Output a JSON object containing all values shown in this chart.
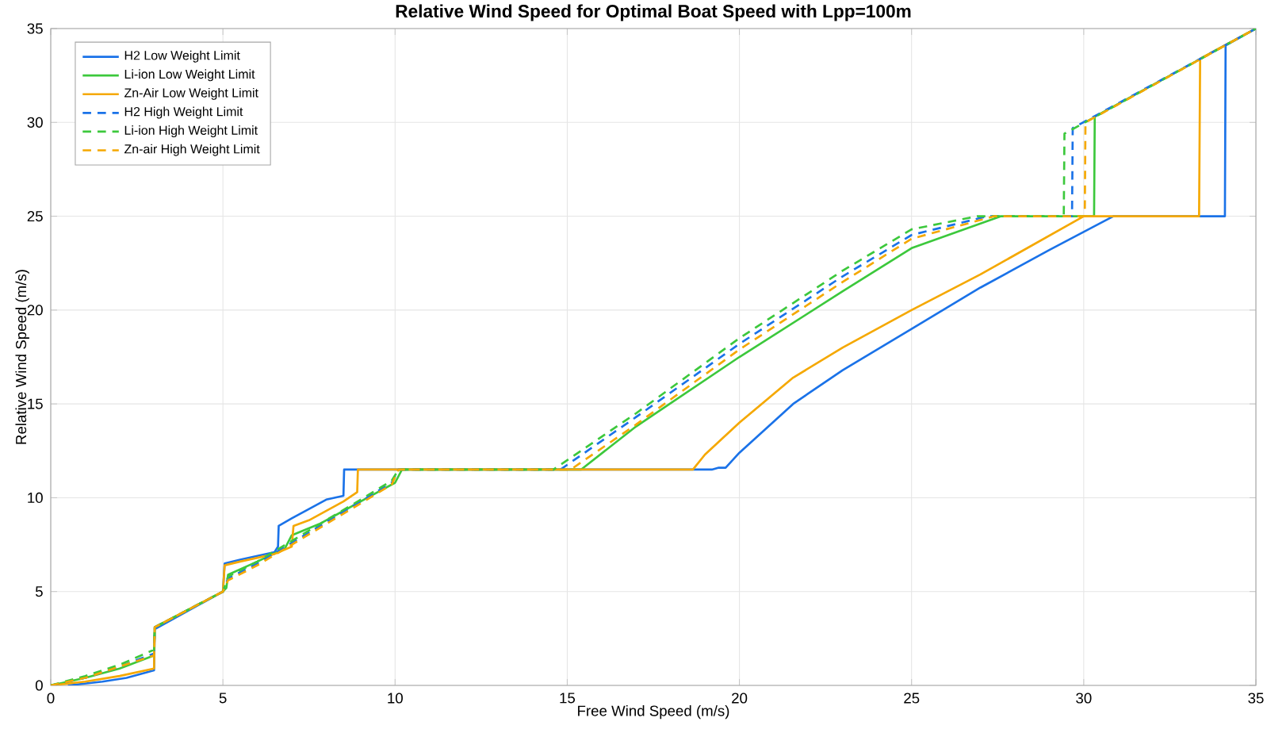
{
  "chart_data": {
    "type": "line",
    "title": "Relative Wind Speed for Optimal Boat Speed with Lpp=100m",
    "xlabel": "Free Wind Speed (m/s)",
    "ylabel": "Relative Wind Speed (m/s)",
    "xlim": [
      0,
      35
    ],
    "ylim": [
      0,
      35
    ],
    "xticks": [
      0,
      5,
      10,
      15,
      20,
      25,
      30,
      35
    ],
    "yticks": [
      0,
      5,
      10,
      15,
      20,
      25,
      30,
      35
    ],
    "grid": true,
    "legend": "top left",
    "marker": "none",
    "series": [
      {
        "name": "H2 Low Weight Limit",
        "color": "#1a72e8",
        "line_style": "solid",
        "x": [
          0.5,
          1.5,
          2.2,
          3,
          3.02,
          5,
          5.05,
          5.5,
          6,
          6.5,
          6.6,
          6.62,
          7,
          7.5,
          8,
          8.5,
          8.52,
          19.2,
          19.4,
          19.6,
          20,
          21.56,
          23,
          25,
          27,
          29,
          30.86,
          34.1,
          34.12,
          35
        ],
        "values": [
          0,
          0.2,
          0.4,
          0.8,
          3.0,
          5,
          6.5,
          6.7,
          6.9,
          7.1,
          7.4,
          8.5,
          8.9,
          9.4,
          9.9,
          10.1,
          11.5,
          11.5,
          11.6,
          11.6,
          12.4,
          15.0,
          16.8,
          19.0,
          21.2,
          23.2,
          25,
          25,
          34.1,
          35
        ]
      },
      {
        "name": "Li-ion Low Weight Limit",
        "color": "#3cc83c",
        "line_style": "solid",
        "x": [
          0,
          1,
          2,
          3,
          3.02,
          5,
          5.1,
          5.15,
          6,
          6.8,
          7.0,
          7.8,
          8.5,
          9.2,
          10,
          10.2,
          15.4,
          17,
          20,
          23,
          25,
          27.6,
          30.3,
          30.32,
          35
        ],
        "values": [
          0,
          0.4,
          0.9,
          1.6,
          3.1,
          5,
          5.2,
          5.9,
          6.6,
          7.3,
          8.0,
          8.6,
          9.3,
          10.0,
          10.8,
          11.5,
          11.5,
          13.8,
          17.5,
          21.0,
          23.3,
          25,
          25,
          30.3,
          35
        ]
      },
      {
        "name": "Zn-Air Low Weight Limit",
        "color": "#f5a800",
        "line_style": "solid",
        "x": [
          0,
          1,
          2,
          3,
          3.02,
          5,
          5.05,
          5.5,
          6,
          6.5,
          7.0,
          7.05,
          7.5,
          8,
          8.5,
          8.9,
          8.92,
          18.65,
          19,
          20,
          21.56,
          23,
          25,
          27,
          30,
          33.35,
          33.38,
          35
        ],
        "values": [
          0,
          0.2,
          0.5,
          0.9,
          3.1,
          5,
          6.4,
          6.6,
          6.8,
          7.0,
          7.4,
          8.5,
          8.8,
          9.3,
          9.8,
          10.3,
          11.5,
          11.5,
          12.3,
          14.0,
          16.4,
          18.0,
          20.0,
          21.9,
          25,
          25,
          33.4,
          35
        ]
      },
      {
        "name": "H2 High Weight Limit",
        "color": "#1a72e8",
        "line_style": "dashed",
        "x": [
          0,
          1,
          2,
          3,
          3.02,
          5,
          5.15,
          6,
          7,
          8,
          9,
          9.9,
          10.1,
          14.8,
          17,
          20,
          23,
          25,
          27.2,
          29.66,
          29.68,
          35
        ],
        "values": [
          0,
          0.4,
          1.0,
          1.7,
          3.1,
          5,
          5.7,
          6.5,
          7.6,
          8.7,
          9.8,
          10.8,
          11.5,
          11.5,
          14.3,
          18.2,
          21.8,
          24.0,
          25,
          25,
          29.7,
          35
        ]
      },
      {
        "name": "Li-ion High Weight Limit",
        "color": "#3cc83c",
        "line_style": "dashed",
        "x": [
          0,
          1,
          2,
          3,
          3.02,
          5,
          5.15,
          6,
          7,
          8,
          9,
          9.9,
          10.1,
          14.6,
          17,
          20,
          23,
          25,
          26.9,
          29.42,
          29.44,
          35
        ],
        "values": [
          0,
          0.5,
          1.1,
          1.9,
          3.1,
          5,
          5.8,
          6.6,
          7.7,
          8.8,
          9.9,
          10.9,
          11.5,
          11.5,
          14.5,
          18.5,
          22.1,
          24.3,
          25,
          25,
          29.4,
          35
        ]
      },
      {
        "name": "Zn-air High Weight Limit",
        "color": "#f5a800",
        "line_style": "dashed",
        "x": [
          0,
          1,
          2,
          3,
          3.02,
          5,
          5.15,
          6,
          7,
          8,
          9,
          9.9,
          10.1,
          15.1,
          17,
          20,
          23,
          25,
          27.4,
          30.03,
          30.05,
          35
        ],
        "values": [
          0,
          0.4,
          1.0,
          1.6,
          3.1,
          5,
          5.6,
          6.4,
          7.5,
          8.6,
          9.7,
          10.7,
          11.5,
          11.5,
          13.9,
          17.9,
          21.5,
          23.8,
          25,
          25,
          30.0,
          35
        ]
      }
    ]
  }
}
